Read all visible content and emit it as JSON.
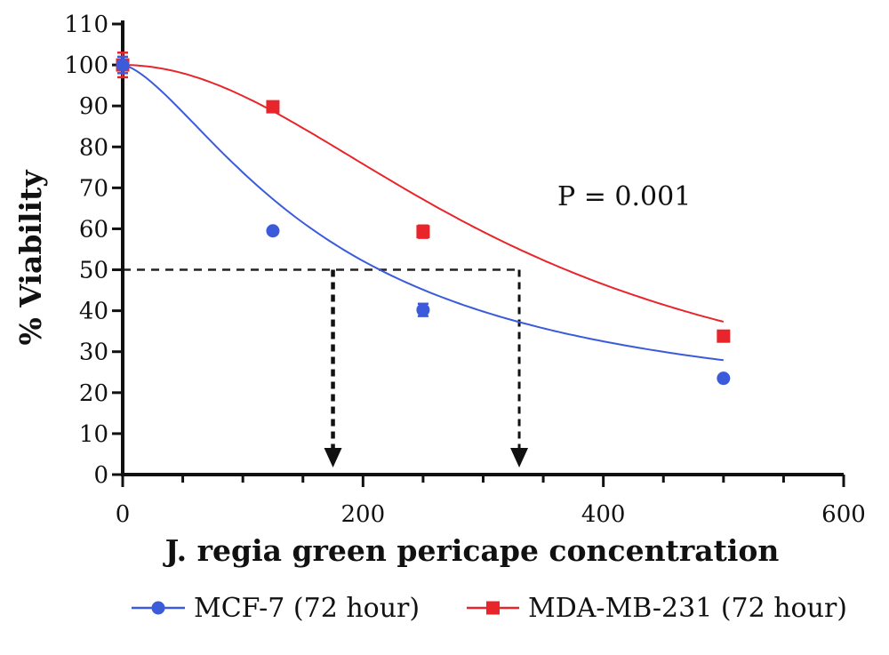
{
  "chart_data": {
    "type": "scatter",
    "title": "",
    "xlabel": "J. regia green pericape concentration",
    "ylabel": "% Viability",
    "xlim": [
      0,
      600
    ],
    "ylim": [
      0,
      110
    ],
    "x_ticks": [
      0,
      200,
      400,
      600
    ],
    "y_ticks": [
      0,
      10,
      20,
      30,
      40,
      50,
      60,
      70,
      80,
      90,
      100,
      110
    ],
    "grid": false,
    "legend_position": "bottom",
    "annotation": "P = 0.001",
    "reference_level": 50,
    "series": [
      {
        "name": "MCF-7 (72 hour)",
        "color": "#3b5bdb",
        "marker": "circle",
        "x": [
          0,
          125,
          250,
          500
        ],
        "y": [
          100,
          59.5,
          40.2,
          23.5
        ],
        "error": [
          2,
          0.5,
          1.5,
          0.5
        ],
        "ic50": 175
      },
      {
        "name": "MDA-MB-231 (72 hour)",
        "color": "#e8252b",
        "marker": "square",
        "x": [
          0,
          125,
          250,
          500
        ],
        "y": [
          100,
          89.8,
          59.3,
          33.8
        ],
        "error": [
          3,
          1,
          1.5,
          0.5
        ],
        "ic50": 330
      }
    ]
  }
}
